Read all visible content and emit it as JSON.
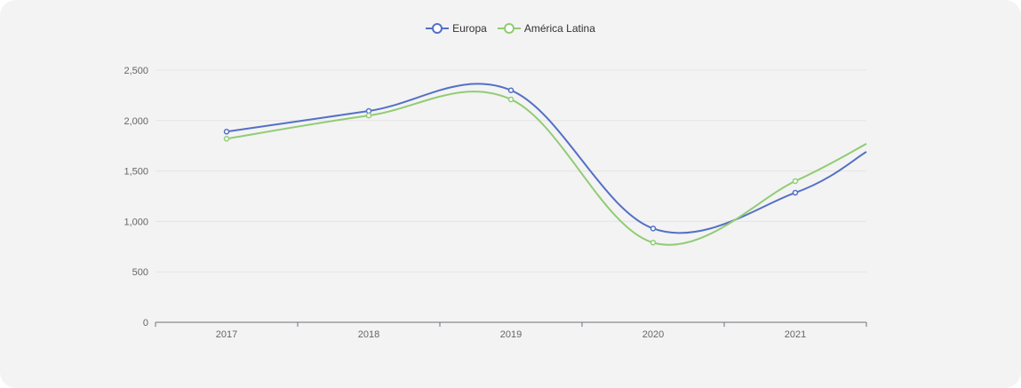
{
  "colors": {
    "card_background": "#f3f3f3",
    "grid": "#e4e4e4",
    "axis": "#6e7079",
    "text": "#666666"
  },
  "chart_data": {
    "type": "line",
    "smooth": true,
    "categories": [
      "2017",
      "2018",
      "2019",
      "2020",
      "2021"
    ],
    "ylim": [
      0,
      2500
    ],
    "y_ticks": [
      0,
      500,
      1000,
      1500,
      2000,
      2500
    ],
    "y_tick_labels": [
      "0",
      "500",
      "1,000",
      "1,500",
      "2,000",
      "2,500"
    ],
    "grid": true,
    "legend_position": "top-center",
    "series": [
      {
        "name": "Europa",
        "color": "#5470c6",
        "values": [
          1890,
          2095,
          2300,
          930,
          1285
        ],
        "trailing_value": 1690
      },
      {
        "name": "América Latina",
        "color": "#91cc75",
        "values": [
          1820,
          2050,
          2210,
          790,
          1400
        ],
        "trailing_value": 1770
      }
    ]
  }
}
